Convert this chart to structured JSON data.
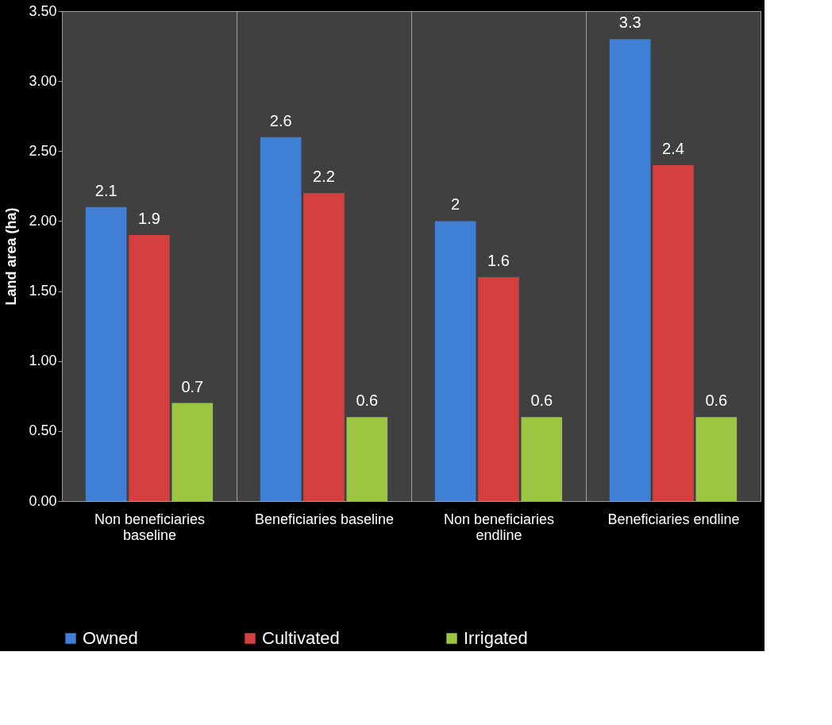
{
  "chart_data": {
    "type": "bar",
    "ylabel": "Land area (ha)",
    "categories": [
      "Non beneficiaries baseline",
      "Beneficiaries baseline",
      "Non beneficiaries endline",
      "Beneficiaries endline"
    ],
    "series": [
      {
        "name": "Owned",
        "color": "#3f7fd6",
        "values": [
          2.1,
          2.6,
          2,
          3.3
        ]
      },
      {
        "name": "Cultivated",
        "color": "#d63f3f",
        "values": [
          1.9,
          2.2,
          1.6,
          2.4
        ]
      },
      {
        "name": "Irrigated",
        "color": "#9cc641",
        "values": [
          0.7,
          0.6,
          0.6,
          0.6
        ]
      }
    ],
    "ylim": [
      0,
      3.5
    ],
    "yticks": [
      {
        "value": 0,
        "label": "0.00"
      },
      {
        "value": 0.5,
        "label": "0.50"
      },
      {
        "value": 1,
        "label": "1.00"
      },
      {
        "value": 1.5,
        "label": "1.50"
      },
      {
        "value": 2,
        "label": "2.00"
      },
      {
        "value": 2.5,
        "label": "2.50"
      },
      {
        "value": 3,
        "label": "3.00"
      },
      {
        "value": 3.5,
        "label": "3.50"
      }
    ],
    "data_labels": true,
    "grid": "x",
    "legend": "bottom"
  }
}
